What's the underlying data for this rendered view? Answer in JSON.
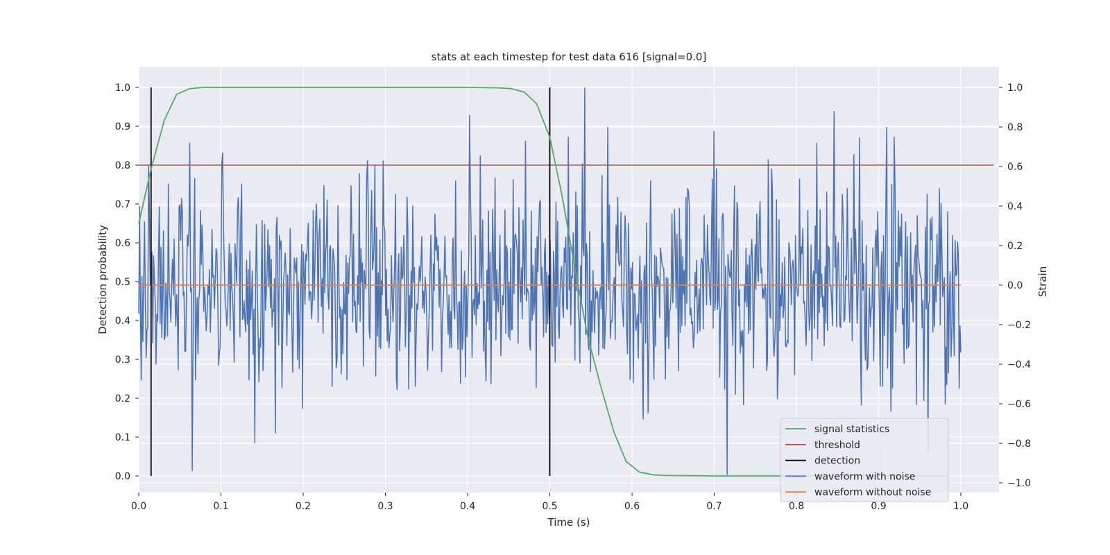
{
  "chart_data": {
    "type": "line",
    "title": "stats at each timestep for test data 616 [signal=0.0]",
    "xlabel": "Time (s)",
    "ylabel": "Detection probability",
    "ylabel_right": "Strain",
    "xlim": [
      0.0,
      1.05
    ],
    "ylim": [
      -0.045,
      1.045
    ],
    "ylim_right": [
      -1.08,
      1.1
    ],
    "x_ticks": [
      "0.0",
      "0.1",
      "0.2",
      "0.3",
      "0.4",
      "0.5",
      "0.6",
      "0.7",
      "0.8",
      "0.9",
      "1.0"
    ],
    "y_ticks": [
      "0.0",
      "0.1",
      "0.2",
      "0.3",
      "0.4",
      "0.5",
      "0.6",
      "0.7",
      "0.8",
      "0.9",
      "1.0"
    ],
    "y_ticks_right": [
      "−1.0",
      "−0.8",
      "−0.6",
      "−0.4",
      "−0.2",
      "0.0",
      "0.2",
      "0.4",
      "0.6",
      "0.8",
      "1.0"
    ],
    "grid": true,
    "legend_position": "lower-right",
    "series": [
      {
        "name": "signal statistics",
        "color": "#55a868",
        "axis": "left",
        "x": [
          0.0,
          0.015,
          0.031,
          0.046,
          0.062,
          0.078,
          0.1,
          0.2,
          0.3,
          0.4,
          0.437,
          0.453,
          0.469,
          0.484,
          0.5,
          0.515,
          0.531,
          0.546,
          0.562,
          0.578,
          0.593,
          0.609,
          0.625,
          0.64,
          0.7,
          0.8,
          0.9,
          0.984
        ],
        "y": [
          0.65,
          0.79,
          0.915,
          0.982,
          0.997,
          1.0,
          1.0,
          1.0,
          1.0,
          1.0,
          0.999,
          0.997,
          0.988,
          0.958,
          0.872,
          0.72,
          0.53,
          0.36,
          0.23,
          0.113,
          0.037,
          0.01,
          0.003,
          0.001,
          0.0,
          0.0,
          0.0,
          0.0
        ]
      },
      {
        "name": "threshold",
        "color": "#c44e52",
        "axis": "left",
        "x": [
          0.0,
          1.04
        ],
        "y": [
          0.8,
          0.8
        ]
      },
      {
        "name": "detection",
        "color": "#000000",
        "axis": "left",
        "type": "vlines",
        "x": [
          0.015,
          0.5
        ],
        "ymin": 0.0,
        "ymax": 1.0
      },
      {
        "name": "waveform with noise",
        "color": "#4c72b0",
        "axis": "right",
        "type": "noise",
        "n_points": 1000,
        "seed": 616,
        "x_range": [
          0.0,
          1.0
        ],
        "std": 0.25,
        "notable_peaks": [
          {
            "x": 0.065,
            "y": -0.94
          },
          {
            "x": 0.062,
            "y": 0.72
          },
          {
            "x": 0.102,
            "y": 0.67
          },
          {
            "x": 0.141,
            "y": -0.8
          },
          {
            "x": 0.402,
            "y": 0.86
          },
          {
            "x": 0.47,
            "y": 0.73
          },
          {
            "x": 0.543,
            "y": 1.0
          },
          {
            "x": 0.571,
            "y": 0.8
          },
          {
            "x": 0.716,
            "y": -0.96
          },
          {
            "x": 0.7,
            "y": 0.78
          },
          {
            "x": 0.846,
            "y": 0.88
          },
          {
            "x": 0.91,
            "y": 0.8
          },
          {
            "x": 0.96,
            "y": -0.85
          }
        ]
      },
      {
        "name": "waveform without noise",
        "color": "#dd8452",
        "axis": "right",
        "x": [
          0.0,
          1.0
        ],
        "y": [
          0.0,
          0.0
        ]
      }
    ]
  }
}
